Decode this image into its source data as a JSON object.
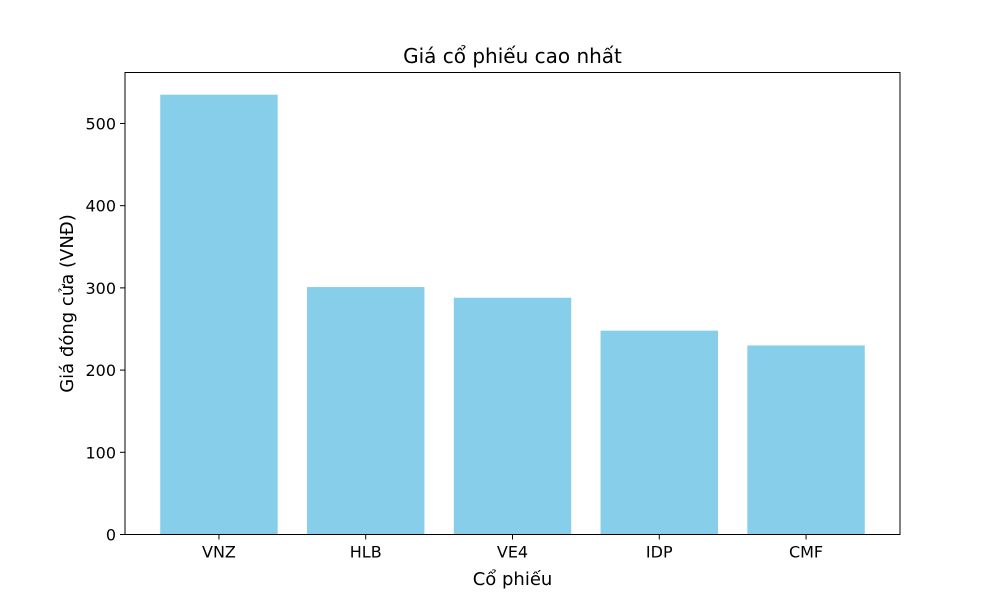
{
  "chart_data": {
    "type": "bar",
    "title": "Giá cổ phiếu cao nhất",
    "xlabel": "Cổ phiếu",
    "ylabel": "Giá đóng cửa (VNĐ)",
    "categories": [
      "VNZ",
      "HLB",
      "VE4",
      "IDP",
      "CMF"
    ],
    "values": [
      535,
      301,
      288,
      248,
      230
    ],
    "ylim": [
      0,
      562
    ],
    "yticks": [
      0,
      100,
      200,
      300,
      400,
      500
    ],
    "ytick_labels": [
      "0",
      "100",
      "200",
      "300",
      "400",
      "500"
    ],
    "bar_color": "#87ceeb",
    "grid": false,
    "legend": "none"
  }
}
